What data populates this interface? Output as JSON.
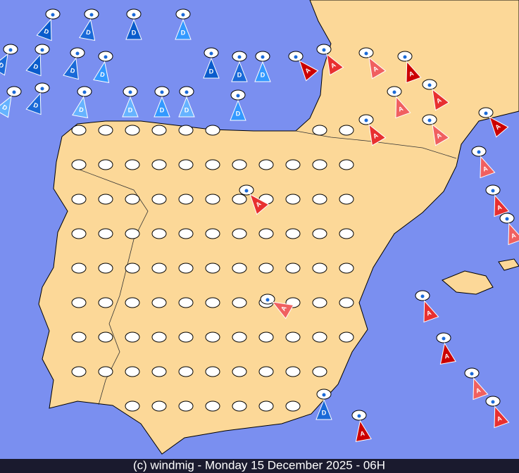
{
  "footer": "(c) windmig - Monday 15 December 2025 - 06H",
  "markers": [
    {
      "label": "D",
      "color": "#0a5ccc"
    },
    {
      "label": "D",
      "color": "#1a6ad8"
    },
    {
      "label": "D",
      "color": "#0a5ccc"
    },
    {
      "label": "D",
      "color": "#3399ff"
    },
    {
      "label": "D",
      "color": "#1a6ad8"
    },
    {
      "label": "D",
      "color": "#0a5ccc"
    },
    {
      "label": "D",
      "color": "#1a6ad8"
    },
    {
      "label": "D",
      "color": "#3399ff"
    },
    {
      "label": "D",
      "color": "#0a5ccc"
    },
    {
      "label": "D",
      "color": "#1a6ad8"
    },
    {
      "label": "D",
      "color": "#3399ff"
    },
    {
      "label": "D",
      "color": "#66b3ff"
    },
    {
      "label": "D",
      "color": "#1a6ad8"
    },
    {
      "label": "D",
      "color": "#66b3ff"
    },
    {
      "label": "D",
      "color": "#66b3ff"
    },
    {
      "label": "D",
      "color": "#3399ff"
    },
    {
      "label": "D",
      "color": "#66b3ff"
    },
    {
      "label": "D",
      "color": "#3399ff"
    },
    {
      "label": "A",
      "color": "#cc0000"
    },
    {
      "label": "A",
      "color": "#e83030"
    },
    {
      "label": "A",
      "color": "#f06060"
    },
    {
      "label": "A",
      "color": "#cc0000"
    },
    {
      "label": "A",
      "color": "#e83030"
    },
    {
      "label": "A",
      "color": "#f06060"
    },
    {
      "label": "A",
      "color": "#e83030"
    },
    {
      "label": "A",
      "color": "#f06060"
    },
    {
      "label": "A",
      "color": "#cc0000"
    },
    {
      "label": "A",
      "color": "#f06060"
    },
    {
      "label": "A",
      "color": "#e83030"
    },
    {
      "label": "A",
      "color": "#f06060"
    },
    {
      "label": "A",
      "color": "#e83030"
    },
    {
      "label": "A",
      "color": "#cc0000"
    },
    {
      "label": "A",
      "color": "#f06060"
    },
    {
      "label": "A",
      "color": "#e83030"
    },
    {
      "label": "A",
      "color": "#cc0000"
    },
    {
      "label": "A",
      "color": "#f06060"
    },
    {
      "label": "A",
      "color": "#e83030"
    },
    {
      "label": "D",
      "color": "#1a6ad8"
    }
  ]
}
